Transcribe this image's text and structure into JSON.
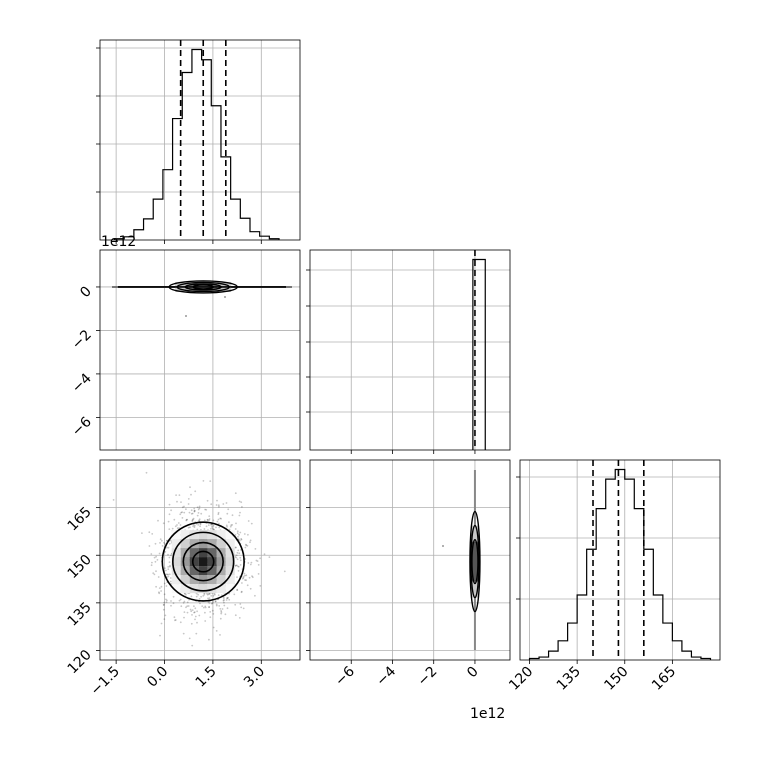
{
  "chart_data": [
    {
      "type": "histogram",
      "panel": "diag-0",
      "x_range": [
        -2.0,
        4.2
      ],
      "bins": [
        -1.55,
        -1.25,
        -0.95,
        -0.65,
        -0.35,
        -0.05,
        0.25,
        0.55,
        0.85,
        1.15,
        1.45,
        1.75,
        2.05,
        2.35,
        2.65,
        2.95,
        3.25,
        3.55
      ],
      "counts": [
        2,
        5,
        16,
        33,
        64,
        110,
        190,
        262,
        298,
        282,
        210,
        130,
        64,
        34,
        13,
        6,
        2
      ],
      "quantile_lines": [
        0.5,
        1.2,
        1.9
      ],
      "grid": true
    },
    {
      "type": "histogram",
      "panel": "diag-1",
      "x_range": [
        -8.0,
        1.7
      ],
      "x_scale_label": "1e12",
      "bins": [
        -0.1,
        0.5
      ],
      "counts": [
        1
      ],
      "quantile_lines": [
        0.0
      ],
      "grid": true
    },
    {
      "type": "histogram",
      "panel": "diag-2",
      "x_range": [
        117,
        180
      ],
      "x_ticks": [
        "120",
        "135",
        "150",
        "165"
      ],
      "x_tick_values": [
        120,
        135,
        150,
        165
      ],
      "bins": [
        120,
        123,
        126,
        129,
        132,
        135,
        138,
        141,
        144,
        147,
        150,
        153,
        156,
        159,
        162,
        165,
        168,
        171,
        174,
        177
      ],
      "counts": [
        2,
        4,
        12,
        26,
        50,
        88,
        150,
        205,
        245,
        258,
        245,
        205,
        150,
        88,
        50,
        26,
        12,
        4,
        2
      ],
      "quantile_lines": [
        140,
        148,
        156
      ],
      "grid": true
    },
    {
      "type": "contour",
      "panel": "param1-vs-param0",
      "x_range": [
        -2.0,
        4.2
      ],
      "y_range": [
        -7.5,
        1.7
      ],
      "y_scale_label": "1e12",
      "y_ticks": [
        "0",
        "−2",
        "−4",
        "−6"
      ],
      "y_tick_values": [
        0,
        -2,
        -4,
        -6
      ],
      "center": [
        1.2,
        0.0
      ],
      "grid": true
    },
    {
      "type": "contour",
      "panel": "param2-vs-param0",
      "x_range": [
        -2.0,
        4.2
      ],
      "y_range": [
        117,
        180
      ],
      "x_ticks": [
        "−1.5",
        "0.0",
        "1.5",
        "3.0"
      ],
      "x_tick_values": [
        -1.5,
        0.0,
        1.5,
        3.0
      ],
      "y_ticks": [
        "120",
        "135",
        "150",
        "165"
      ],
      "y_tick_values": [
        120,
        135,
        150,
        165
      ],
      "center": [
        1.2,
        148
      ],
      "sigma": [
        0.65,
        8
      ],
      "grid": true
    },
    {
      "type": "contour",
      "panel": "param2-vs-param1",
      "x_range": [
        -8.0,
        1.7
      ],
      "y_range": [
        117,
        180
      ],
      "x_scale_label": "1e12",
      "x_ticks": [
        "−6",
        "−4",
        "−2",
        "0"
      ],
      "x_tick_values": [
        -6,
        -4,
        -2,
        0
      ],
      "center": [
        0.0,
        148
      ],
      "grid": true
    }
  ]
}
